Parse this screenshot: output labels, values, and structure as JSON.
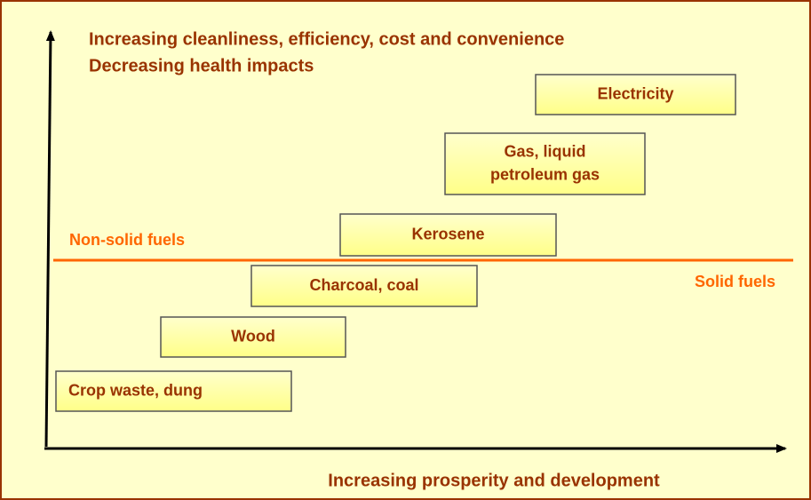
{
  "header": {
    "lines": [
      "Increasing cleanliness, efficiency, cost and convenience",
      "Decreasing health impacts"
    ]
  },
  "x_axis": {
    "label": "Increasing prosperity and development"
  },
  "divider": {
    "above": "Non-solid fuels",
    "below": "Solid fuels"
  },
  "nodes": [
    {
      "lines": [
        "Crop waste, dung"
      ]
    },
    {
      "lines": [
        "Wood"
      ]
    },
    {
      "lines": [
        "Charcoal, coal"
      ]
    },
    {
      "lines": [
        "Kerosene"
      ]
    },
    {
      "lines": [
        "Gas, liquid",
        "petroleum gas"
      ]
    },
    {
      "lines": [
        "Electricity"
      ]
    }
  ]
}
